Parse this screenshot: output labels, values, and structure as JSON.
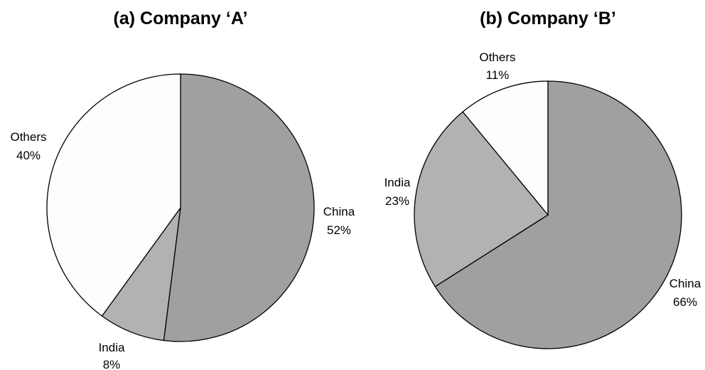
{
  "chart_data": [
    {
      "type": "pie",
      "title": "(a) Company ‘A’",
      "categories": [
        "China",
        "India",
        "Others"
      ],
      "values": [
        52,
        8,
        40
      ],
      "labels": [
        "52%",
        "8%",
        "40%"
      ],
      "colors": [
        "#a0a0a0",
        "#b2b2b2",
        "#fdfdfd"
      ],
      "start": "12 o'clock",
      "direction": "clockwise",
      "legend": "none"
    },
    {
      "type": "pie",
      "title": "(b) Company ‘B’",
      "categories": [
        "China",
        "India",
        "Others"
      ],
      "values": [
        66,
        23,
        11
      ],
      "labels": [
        "66%",
        "23%",
        "11%"
      ],
      "colors": [
        "#a0a0a0",
        "#b2b2b2",
        "#fdfdfd"
      ],
      "start": "12 o'clock",
      "direction": "clockwise",
      "legend": "none"
    }
  ]
}
